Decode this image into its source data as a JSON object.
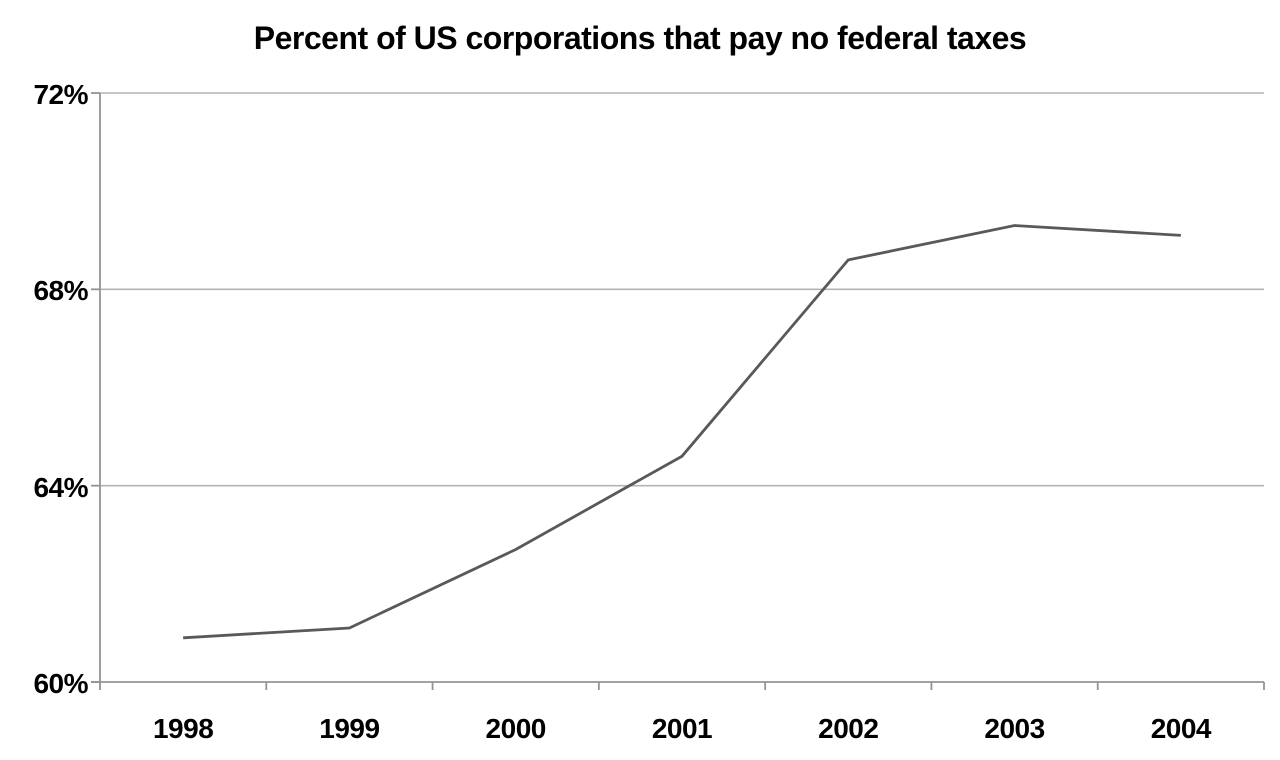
{
  "chart_data": {
    "type": "line",
    "title": "Percent of US corporations that pay no federal taxes",
    "categories": [
      "1998",
      "1999",
      "2000",
      "2001",
      "2002",
      "2003",
      "2004"
    ],
    "values": [
      60.9,
      61.1,
      62.7,
      64.6,
      68.6,
      69.3,
      69.1
    ],
    "xlabel": "",
    "ylabel": "",
    "ylim": [
      60,
      72
    ],
    "yticks": [
      60,
      64,
      68,
      72
    ],
    "ytick_labels": [
      "60%",
      "64%",
      "68%",
      "72%"
    ],
    "grid": true,
    "legend_position": "none",
    "colors": {
      "line": "#595959",
      "gridline": "#b4b4b4",
      "axis": "#949494",
      "text": "#000000",
      "background": "#ffffff"
    }
  }
}
